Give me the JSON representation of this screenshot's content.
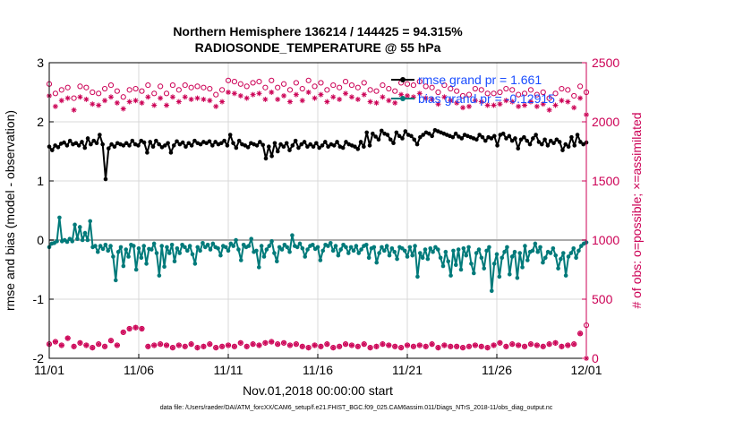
{
  "chart_data": {
    "type": "line",
    "title_line1": "Northern Hemisphere 136214 / 144425 = 94.315%",
    "title_line2": "RADIOSONDE_TEMPERATURE @ 55 hPa",
    "xlabel": "Nov.01,2018 00:00:00 start",
    "ylabel_left": "rmse and bias (model - observation)",
    "ylabel_right": "# of obs: o=possible; ×=assimilated",
    "footer": "data file: /Users/raeder/DAI/ATM_forcXX/CAM6_setup/f.e21.FHIST_BGC.f09_025.CAM6assim.011/Diags_NTrS_2018-11/obs_diag_output.nc",
    "x_tick_labels": [
      "11/01",
      "11/06",
      "11/11",
      "11/16",
      "11/21",
      "11/26",
      "12/01"
    ],
    "y_left_ticks": [
      "-2",
      "-1",
      "0",
      "1",
      "2",
      "3"
    ],
    "y_left_lim": [
      -2,
      3
    ],
    "y_right_ticks": [
      "0",
      "500",
      "1000",
      "1500",
      "2000",
      "2500"
    ],
    "y_right_lim": [
      0,
      2500
    ],
    "x_lim_days": [
      0,
      30
    ],
    "legend": {
      "rmse": "rmse grand pr = 1.661",
      "bias": "bias grand pr = -0.12915"
    },
    "colors": {
      "rmse": "#000000",
      "bias": "#007a7a",
      "counts": "#cc0055",
      "legend_text": "#1a4dff",
      "grid": "#d9d9d9",
      "zero_line": "#aaaaaa"
    },
    "series": [
      {
        "name": "rmse",
        "axis": "left",
        "values": [
          1.58,
          1.52,
          1.6,
          1.57,
          1.63,
          1.65,
          1.6,
          1.68,
          1.62,
          1.64,
          1.6,
          1.66,
          1.56,
          1.72,
          1.62,
          1.68,
          1.64,
          1.78,
          1.62,
          1.03,
          1.55,
          1.62,
          1.58,
          1.64,
          1.62,
          1.6,
          1.64,
          1.6,
          1.68,
          1.62,
          1.6,
          1.68,
          1.65,
          1.48,
          1.66,
          1.58,
          1.68,
          1.62,
          1.57,
          1.6,
          1.64,
          1.48,
          1.6,
          1.67,
          1.62,
          1.65,
          1.58,
          1.64,
          1.6,
          1.68,
          1.64,
          1.62,
          1.66,
          1.64,
          1.67,
          1.6,
          1.66,
          1.62,
          1.64,
          1.68,
          1.6,
          1.78,
          1.64,
          1.56,
          1.68,
          1.62,
          1.6,
          1.57,
          1.64,
          1.62,
          1.6,
          1.66,
          1.61,
          1.38,
          1.58,
          1.42,
          1.64,
          1.5,
          1.62,
          1.58,
          1.64,
          1.52,
          1.6,
          1.68,
          1.56,
          1.62,
          1.66,
          1.58,
          1.62,
          1.58,
          1.64,
          1.56,
          1.6,
          1.66,
          1.58,
          1.62,
          1.6,
          1.66,
          1.58,
          1.56,
          1.66,
          1.62,
          1.6,
          1.58,
          1.54,
          1.66,
          1.58,
          1.82,
          1.6,
          1.8,
          1.75,
          1.7,
          1.85,
          1.8,
          1.78,
          1.7,
          1.64,
          1.82,
          1.76,
          1.72,
          1.84,
          1.78,
          1.76,
          1.7,
          1.62,
          1.74,
          1.78,
          1.82,
          1.8,
          1.76,
          1.86,
          1.84,
          1.82,
          1.8,
          1.78,
          1.76,
          1.74,
          1.8,
          1.75,
          1.72,
          1.78,
          1.76,
          1.74,
          1.72,
          1.7,
          1.78,
          1.74,
          1.68,
          1.74,
          1.72,
          1.76,
          1.6,
          1.78,
          1.8,
          1.72,
          1.76,
          1.68,
          1.72,
          1.55,
          1.7,
          1.74,
          1.68,
          1.62,
          1.72,
          1.78,
          1.66,
          1.62,
          1.7,
          1.6,
          1.68,
          1.64,
          1.7,
          1.66,
          1.52,
          1.62,
          1.58,
          1.74,
          1.6,
          1.78,
          1.66,
          1.62,
          1.65
        ]
      },
      {
        "name": "bias",
        "axis": "left",
        "values": [
          -0.12,
          -0.06,
          -0.05,
          -0.02,
          0.38,
          -0.02,
          0.0,
          -0.03,
          0.02,
          -0.02,
          0.26,
          0.02,
          0.22,
          0.0,
          0.12,
          0.0,
          0.32,
          -0.12,
          -0.1,
          -0.2,
          -0.1,
          -0.15,
          -0.08,
          -0.18,
          -0.1,
          -0.28,
          -0.68,
          -0.2,
          -0.12,
          -0.44,
          -0.16,
          -0.28,
          -0.08,
          -0.1,
          -0.5,
          -0.14,
          -0.3,
          -0.1,
          -0.4,
          -0.15,
          -0.16,
          -0.06,
          -0.22,
          -0.6,
          -0.1,
          -0.45,
          -0.12,
          -0.22,
          -0.08,
          -0.36,
          -0.14,
          -0.22,
          -0.08,
          -0.12,
          -0.18,
          -0.1,
          -0.24,
          -0.4,
          -0.12,
          -0.18,
          -0.05,
          -0.12,
          -0.08,
          -0.16,
          -0.06,
          -0.12,
          -0.14,
          -0.26,
          -0.1,
          -0.12,
          -0.18,
          -0.06,
          -0.1,
          0.0,
          -0.16,
          -0.34,
          -0.08,
          -0.12,
          -0.1,
          0.02,
          -0.2,
          -0.18,
          -0.46,
          -0.1,
          -0.28,
          -0.16,
          -0.1,
          -0.02,
          -0.22,
          -0.36,
          -0.12,
          -0.16,
          -0.08,
          -0.12,
          -0.2,
          0.08,
          -0.1,
          -0.12,
          -0.06,
          -0.14,
          -0.28,
          -0.16,
          -0.1,
          -0.08,
          -0.15,
          -0.12,
          -0.34,
          -0.18,
          -0.08,
          -0.1,
          -0.05,
          -0.18,
          -0.1,
          -0.26,
          -0.16,
          -0.08,
          -0.12,
          -0.22,
          -0.12,
          -0.18,
          -0.1,
          -0.22,
          -0.16,
          -0.1,
          -0.08,
          -0.3,
          -0.14,
          -0.12,
          -0.38,
          -0.22,
          -0.12,
          -0.18,
          -0.1,
          -0.26,
          -0.14,
          -0.2,
          -0.32,
          -0.12,
          -0.14,
          -0.18,
          -0.28,
          -0.12,
          -0.26,
          -0.1,
          -0.62,
          -0.22,
          -0.3,
          -0.16,
          -0.32,
          -0.14,
          -0.2,
          -0.12,
          -0.16,
          -0.3,
          -0.44,
          -0.2,
          -0.36,
          -0.6,
          -0.18,
          -0.42,
          -0.16,
          -0.5,
          -0.14,
          -0.26,
          -0.12,
          -0.4,
          -0.56,
          -0.22,
          -0.16,
          -0.3,
          -0.48,
          -0.18,
          -0.12,
          -0.86,
          -0.4,
          -0.24,
          -0.62,
          -0.3,
          -0.2,
          -0.12,
          -0.58,
          -0.28,
          -0.2,
          -0.64,
          -0.22,
          -0.46,
          -0.1,
          -0.34,
          -0.2,
          -0.18,
          -0.06,
          -0.2,
          -0.12,
          -0.38,
          -0.3,
          -0.2,
          -0.22,
          -0.14,
          -0.26,
          -0.48,
          -0.32,
          -0.22,
          -0.6,
          -0.28,
          -0.22,
          -0.14,
          -0.3,
          -0.18,
          -0.1,
          -0.06,
          -0.04
        ]
      },
      {
        "name": "possible",
        "axis": "right",
        "values": [
          2320,
          2240,
          2270,
          2290,
          2200,
          2300,
          2290,
          2250,
          2240,
          2280,
          2310,
          2260,
          2210,
          2270,
          2280,
          2260,
          2310,
          2240,
          2300,
          2240,
          2310,
          2270,
          2310,
          2290,
          2300,
          2290,
          2280,
          2230,
          2270,
          2350,
          2340,
          2320,
          2300,
          2330,
          2340,
          2290,
          2350,
          2290,
          2320,
          2270,
          2330,
          2280,
          2350,
          2300,
          2330,
          2270,
          2310,
          2290,
          2340,
          2310,
          2290,
          2330,
          2270,
          2260,
          2310,
          2280,
          2260,
          2330,
          2320,
          2310,
          2340,
          2300,
          2290,
          2250,
          2310,
          2280,
          2260,
          2220,
          2230,
          2280,
          2270,
          2240,
          2240,
          2250,
          2280,
          2270,
          2230,
          2240,
          2270,
          2230,
          2250,
          2200,
          2240,
          2280,
          2270,
          2220,
          2300,
          2250
        ]
      },
      {
        "name": "assimilated",
        "axis": "right",
        "values": [
          2220,
          2130,
          2180,
          2200,
          2100,
          2210,
          2190,
          2150,
          2140,
          2180,
          2210,
          2160,
          2110,
          2170,
          2180,
          2160,
          2210,
          2140,
          2200,
          2140,
          2210,
          2170,
          2210,
          2190,
          2200,
          2190,
          2180,
          2130,
          2170,
          2250,
          2240,
          2220,
          2200,
          2230,
          2240,
          2190,
          2250,
          2190,
          2220,
          2170,
          2230,
          2180,
          2250,
          2200,
          2230,
          2170,
          2210,
          2190,
          2240,
          2210,
          2190,
          2230,
          2170,
          2160,
          2210,
          2180,
          2160,
          2230,
          2220,
          2210,
          2240,
          2200,
          2190,
          2150,
          2210,
          2180,
          2160,
          2120,
          2130,
          2180,
          2170,
          2140,
          2140,
          2150,
          2180,
          2170,
          2130,
          2140,
          2170,
          2130,
          2150,
          2100,
          2140,
          2180,
          2170,
          2120,
          2200,
          2060
        ]
      },
      {
        "name": "possible_low",
        "axis": "right",
        "values": [
          120,
          140,
          110,
          170,
          100,
          130,
          110,
          90,
          120,
          100,
          150,
          110,
          220,
          250,
          260,
          250,
          100,
          110,
          120,
          110,
          90,
          110,
          100,
          120,
          90,
          100,
          120,
          90,
          100,
          110,
          100,
          130,
          100,
          120,
          110,
          130,
          140,
          120,
          130,
          110,
          120,
          100,
          90,
          110,
          100,
          120,
          90,
          100,
          120,
          110,
          100,
          120,
          90,
          100,
          120,
          110,
          100,
          90,
          110,
          100,
          110,
          100,
          120,
          90,
          110,
          100,
          100,
          90,
          100,
          110,
          100,
          90,
          110,
          130,
          100,
          120,
          110,
          100,
          120,
          110,
          100,
          120,
          130,
          100,
          110,
          120,
          210,
          280
        ]
      },
      {
        "name": "assimilated_low",
        "axis": "right",
        "values": [
          120,
          140,
          110,
          170,
          100,
          130,
          110,
          90,
          120,
          100,
          150,
          110,
          220,
          250,
          260,
          250,
          100,
          110,
          120,
          110,
          90,
          110,
          100,
          120,
          90,
          100,
          120,
          90,
          100,
          110,
          100,
          130,
          100,
          120,
          110,
          130,
          140,
          120,
          130,
          110,
          120,
          100,
          90,
          110,
          100,
          120,
          90,
          100,
          120,
          110,
          100,
          120,
          90,
          100,
          120,
          110,
          100,
          90,
          110,
          100,
          110,
          100,
          120,
          90,
          110,
          100,
          100,
          90,
          100,
          110,
          100,
          90,
          110,
          130,
          100,
          120,
          110,
          100,
          120,
          110,
          100,
          120,
          130,
          100,
          110,
          120,
          210,
          0
        ]
      }
    ]
  }
}
